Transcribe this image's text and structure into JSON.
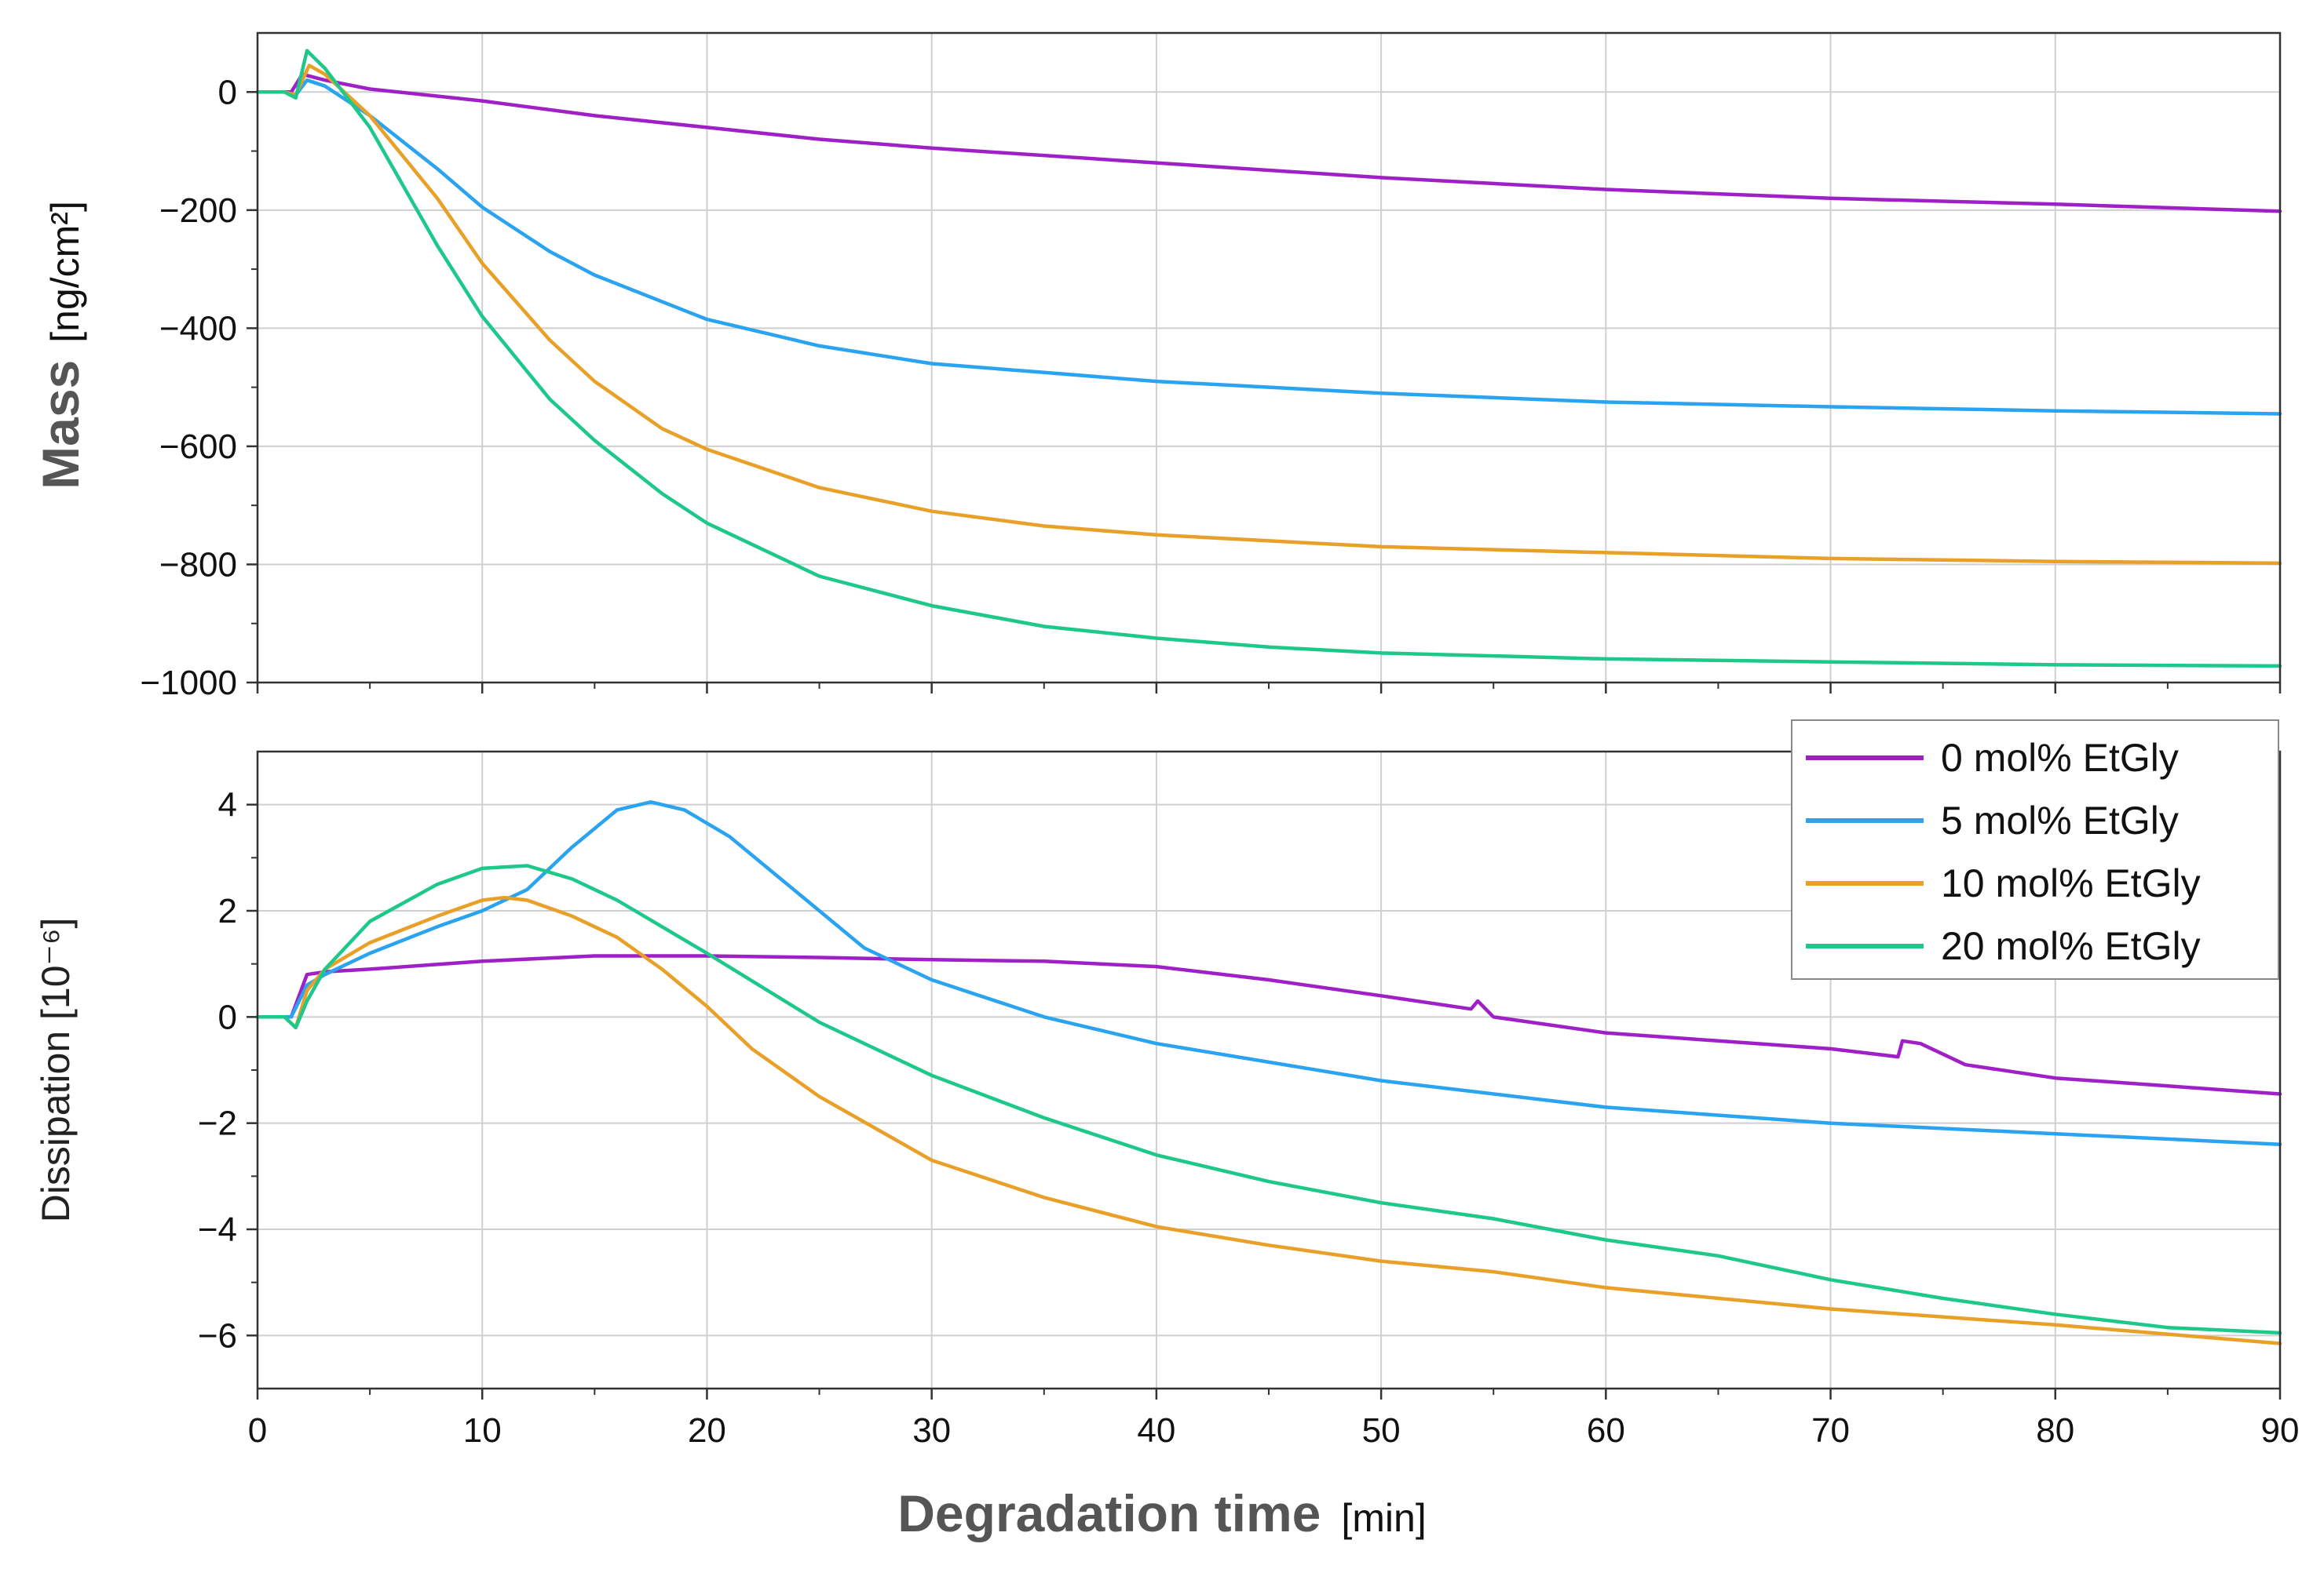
{
  "chart_data": [
    {
      "id": "mass",
      "type": "line",
      "ylabel_main": "Mass",
      "ylabel_unit": "[ng/cm²]",
      "xlim": [
        0,
        90
      ],
      "ylim": [
        -1000,
        100
      ],
      "yticks": [
        0,
        -200,
        -400,
        -600,
        -800,
        -1000
      ],
      "ytick_labels": [
        "0",
        "−200",
        "−400",
        "−600",
        "−800",
        "−1000"
      ],
      "grid": true,
      "series": [
        {
          "name": "0 mol% EtGly",
          "color": "#a020c8",
          "x": [
            0,
            1.5,
            2,
            3,
            5,
            10,
            15,
            20,
            25,
            30,
            40,
            50,
            60,
            70,
            80,
            90
          ],
          "y": [
            0,
            0,
            30,
            20,
            5,
            -15,
            -40,
            -60,
            -80,
            -95,
            -120,
            -145,
            -165,
            -180,
            -190,
            -202
          ]
        },
        {
          "name": "5 mol% EtGly",
          "color": "#2aa3f0",
          "x": [
            0,
            1.2,
            1.7,
            2.2,
            3,
            5,
            8,
            10,
            13,
            15,
            20,
            25,
            30,
            35,
            40,
            50,
            60,
            70,
            80,
            90
          ],
          "y": [
            0,
            0,
            -5,
            20,
            10,
            -40,
            -130,
            -195,
            -270,
            -310,
            -385,
            -430,
            -460,
            -475,
            -490,
            -510,
            -525,
            -533,
            -540,
            -545
          ]
        },
        {
          "name": "10 mol% EtGly",
          "color": "#e8a028",
          "x": [
            0,
            1.2,
            1.7,
            2.3,
            3,
            5,
            8,
            10,
            13,
            15,
            18,
            20,
            25,
            30,
            35,
            40,
            50,
            60,
            70,
            80,
            90
          ],
          "y": [
            0,
            0,
            -5,
            45,
            30,
            -40,
            -180,
            -290,
            -420,
            -490,
            -570,
            -605,
            -670,
            -710,
            -735,
            -750,
            -770,
            -780,
            -790,
            -795,
            -798
          ]
        },
        {
          "name": "20 mol% EtGly",
          "color": "#1ec88a",
          "x": [
            0,
            1.2,
            1.7,
            2.2,
            3,
            5,
            8,
            10,
            13,
            15,
            18,
            20,
            25,
            30,
            35,
            40,
            45,
            50,
            55,
            60,
            70,
            80,
            90
          ],
          "y": [
            0,
            0,
            -10,
            70,
            40,
            -60,
            -260,
            -380,
            -520,
            -590,
            -680,
            -730,
            -820,
            -870,
            -905,
            -925,
            -940,
            -950,
            -955,
            -960,
            -965,
            -970,
            -972
          ]
        }
      ]
    },
    {
      "id": "dissipation",
      "type": "line",
      "ylabel": "Dissipation [10⁻⁶]",
      "xlabel_main": "Degradation time",
      "xlabel_unit": "[min]",
      "xlim": [
        0,
        90
      ],
      "ylim": [
        -7,
        5
      ],
      "xticks": [
        0,
        10,
        20,
        30,
        40,
        50,
        60,
        70,
        80,
        90
      ],
      "xtick_labels": [
        "0",
        "10",
        "20",
        "30",
        "40",
        "50",
        "60",
        "70",
        "80",
        "90"
      ],
      "yticks": [
        4,
        2,
        0,
        -2,
        -4,
        -6
      ],
      "ytick_labels": [
        "4",
        "2",
        "0",
        "−2",
        "−4",
        "−6"
      ],
      "grid": true,
      "legend": "top-right",
      "series": [
        {
          "name": "0 mol% EtGly",
          "color": "#a020c8",
          "x": [
            0,
            1.5,
            2.2,
            3,
            5,
            10,
            15,
            20,
            25,
            30,
            35,
            40,
            45,
            50,
            54,
            54.3,
            55,
            60,
            65,
            70,
            73,
            73.2,
            74,
            76,
            80,
            85,
            90
          ],
          "y": [
            0,
            0,
            0.8,
            0.85,
            0.9,
            1.05,
            1.15,
            1.15,
            1.12,
            1.08,
            1.05,
            0.95,
            0.7,
            0.4,
            0.15,
            0.3,
            0.0,
            -0.3,
            -0.45,
            -0.6,
            -0.75,
            -0.45,
            -0.5,
            -0.9,
            -1.15,
            -1.3,
            -1.45
          ]
        },
        {
          "name": "5 mol% EtGly",
          "color": "#2aa3f0",
          "x": [
            0,
            1.5,
            2.2,
            3,
            5,
            8,
            10,
            12,
            14,
            16,
            17.5,
            19,
            21,
            23,
            25,
            27,
            30,
            35,
            40,
            50,
            60,
            70,
            80,
            90
          ],
          "y": [
            0,
            0,
            0.6,
            0.8,
            1.2,
            1.7,
            2.0,
            2.4,
            3.2,
            3.9,
            4.05,
            3.9,
            3.4,
            2.7,
            2.0,
            1.3,
            0.7,
            0.0,
            -0.5,
            -1.2,
            -1.7,
            -2.0,
            -2.2,
            -2.4
          ]
        },
        {
          "name": "10 mol% EtGly",
          "color": "#e8a028",
          "x": [
            0,
            1.2,
            1.7,
            2.2,
            3,
            5,
            8,
            10,
            11,
            12,
            14,
            16,
            18,
            20,
            22,
            25,
            30,
            35,
            40,
            45,
            50,
            55,
            60,
            70,
            80,
            90
          ],
          "y": [
            0,
            0,
            -0.2,
            0.5,
            0.9,
            1.4,
            1.9,
            2.2,
            2.25,
            2.2,
            1.9,
            1.5,
            0.9,
            0.2,
            -0.6,
            -1.5,
            -2.7,
            -3.4,
            -3.95,
            -4.3,
            -4.6,
            -4.8,
            -5.1,
            -5.5,
            -5.8,
            -6.15
          ]
        },
        {
          "name": "20 mol% EtGly",
          "color": "#1ec88a",
          "x": [
            0,
            1.2,
            1.7,
            2.2,
            3,
            5,
            8,
            10,
            12,
            14,
            16,
            18,
            20,
            25,
            30,
            35,
            40,
            45,
            50,
            55,
            60,
            65,
            70,
            75,
            80,
            85,
            90
          ],
          "y": [
            0,
            0,
            -0.2,
            0.3,
            0.9,
            1.8,
            2.5,
            2.8,
            2.85,
            2.6,
            2.2,
            1.7,
            1.2,
            -0.1,
            -1.1,
            -1.9,
            -2.6,
            -3.1,
            -3.5,
            -3.8,
            -4.2,
            -4.5,
            -4.95,
            -5.3,
            -5.6,
            -5.85,
            -5.95
          ]
        }
      ]
    }
  ]
}
